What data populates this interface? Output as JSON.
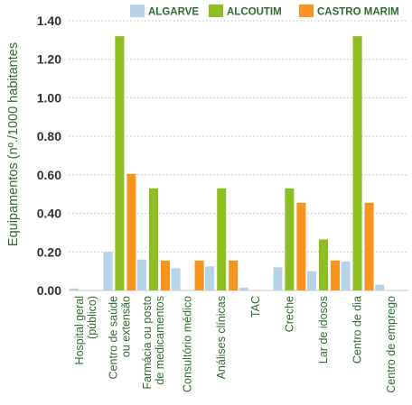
{
  "chart_data": {
    "type": "bar",
    "title": "",
    "xlabel": "",
    "ylabel": "Equipamentos (nº./1000 habitantes",
    "ylim": [
      0,
      1.4
    ],
    "yticks": [
      "0.00",
      "0.20",
      "0.40",
      "0.60",
      "0.80",
      "1.00",
      "1.20",
      "1.40"
    ],
    "grid": "horizontal dotted",
    "legend_position": "top-right",
    "categories": [
      [
        "Hospital geral",
        "(público)"
      ],
      [
        "Centro de saúde",
        "ou extensão"
      ],
      [
        "Farmácia ou posto",
        "de medicamentos"
      ],
      [
        "Consultório médico"
      ],
      [
        "Análises clínicas"
      ],
      [
        "TAC"
      ],
      [
        "Creche"
      ],
      [
        "Lar de idosos"
      ],
      [
        "Centro de dia"
      ],
      [
        "Centro de emprego"
      ]
    ],
    "series": [
      {
        "name": "ALGARVE",
        "color": "#b7d3ea",
        "values": [
          0.01,
          0.2,
          0.16,
          0.115,
          0.125,
          0.015,
          0.12,
          0.1,
          0.15,
          0.03
        ]
      },
      {
        "name": "ALCOUTIM",
        "color": "#8cbf1f",
        "values": [
          0,
          1.32,
          0.53,
          0,
          0.53,
          0,
          0.53,
          0.265,
          1.32,
          0
        ]
      },
      {
        "name": "CASTRO MARIM",
        "color": "#f7941d",
        "values": [
          0,
          0.605,
          0.155,
          0.155,
          0.155,
          0,
          0.455,
          0.155,
          0.455,
          0
        ]
      }
    ]
  }
}
